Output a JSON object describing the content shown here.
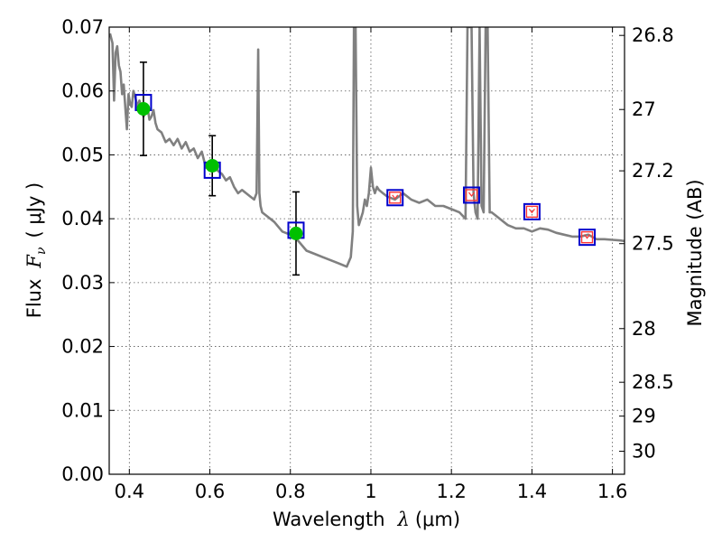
{
  "chart_data": {
    "type": "line",
    "xlabel": "Wavelength",
    "xlabel_symbol": "λ",
    "xlabel_unit": "(μm)",
    "ylabel": "Flux",
    "ylabel_symbol": "F",
    "ylabel_subscript": "ν",
    "ylabel_unit": "( μJy )",
    "y2label": "Magnitude (AB)",
    "xlim": [
      0.35,
      1.63
    ],
    "ylim": [
      0.0,
      0.07
    ],
    "grid": true,
    "x_ticks": [
      0.4,
      0.6,
      0.8,
      1.0,
      1.2,
      1.4,
      1.6
    ],
    "x_tick_labels": [
      "0.4",
      "0.6",
      "0.8",
      "1",
      "1.2",
      "1.4",
      "1.6"
    ],
    "y_ticks": [
      0.0,
      0.01,
      0.02,
      0.03,
      0.04,
      0.05,
      0.06,
      0.07
    ],
    "y_tick_labels": [
      "0.00",
      "0.01",
      "0.02",
      "0.03",
      "0.04",
      "0.05",
      "0.06",
      "0.07"
    ],
    "y2_ticks": [
      {
        "label": "26.8",
        "flux": 0.0687
      },
      {
        "label": "27",
        "flux": 0.0571
      },
      {
        "label": "27.2",
        "flux": 0.0475
      },
      {
        "label": "27.5",
        "flux": 0.0361
      },
      {
        "label": "28",
        "flux": 0.0228
      },
      {
        "label": "28.5",
        "flux": 0.0144
      },
      {
        "label": "29",
        "flux": 0.0091
      },
      {
        "label": "30",
        "flux": 0.0036
      }
    ],
    "model_spectrum": {
      "color": "#808080",
      "x": [
        0.352,
        0.358,
        0.362,
        0.366,
        0.37,
        0.374,
        0.378,
        0.382,
        0.386,
        0.39,
        0.394,
        0.398,
        0.402,
        0.406,
        0.41,
        0.415,
        0.42,
        0.425,
        0.43,
        0.435,
        0.44,
        0.445,
        0.45,
        0.455,
        0.46,
        0.465,
        0.47,
        0.48,
        0.49,
        0.5,
        0.51,
        0.52,
        0.53,
        0.54,
        0.55,
        0.56,
        0.57,
        0.58,
        0.59,
        0.6,
        0.61,
        0.62,
        0.63,
        0.64,
        0.65,
        0.66,
        0.67,
        0.68,
        0.69,
        0.7,
        0.71,
        0.716,
        0.72,
        0.723,
        0.726,
        0.73,
        0.74,
        0.76,
        0.78,
        0.8,
        0.82,
        0.84,
        0.86,
        0.88,
        0.9,
        0.92,
        0.94,
        0.95,
        0.955,
        0.958,
        0.96,
        0.962,
        0.966,
        0.97,
        0.975,
        0.98,
        0.985,
        0.99,
        0.995,
        1.0,
        1.005,
        1.01,
        1.015,
        1.02,
        1.03,
        1.04,
        1.06,
        1.08,
        1.1,
        1.12,
        1.14,
        1.16,
        1.18,
        1.2,
        1.22,
        1.235,
        1.24,
        1.245,
        1.25,
        1.255,
        1.26,
        1.265,
        1.27,
        1.275,
        1.28,
        1.285,
        1.29,
        1.295,
        1.3,
        1.31,
        1.32,
        1.34,
        1.36,
        1.38,
        1.4,
        1.42,
        1.44,
        1.46,
        1.48,
        1.5,
        1.52,
        1.54,
        1.56,
        1.58,
        1.6,
        1.62,
        1.63
      ],
      "y": [
        0.069,
        0.0675,
        0.0585,
        0.066,
        0.067,
        0.064,
        0.063,
        0.0595,
        0.061,
        0.0575,
        0.054,
        0.0595,
        0.058,
        0.0575,
        0.06,
        0.059,
        0.0575,
        0.0585,
        0.0575,
        0.056,
        0.0565,
        0.0575,
        0.0555,
        0.056,
        0.057,
        0.055,
        0.054,
        0.0535,
        0.052,
        0.0525,
        0.0515,
        0.0525,
        0.051,
        0.052,
        0.0505,
        0.051,
        0.0495,
        0.0505,
        0.048,
        0.049,
        0.0485,
        0.0475,
        0.047,
        0.046,
        0.0465,
        0.045,
        0.044,
        0.0445,
        0.044,
        0.0435,
        0.043,
        0.044,
        0.0665,
        0.044,
        0.042,
        0.041,
        0.0405,
        0.0395,
        0.038,
        0.0375,
        0.0365,
        0.035,
        0.0345,
        0.034,
        0.0335,
        0.033,
        0.0325,
        0.034,
        0.038,
        0.07,
        0.07,
        0.07,
        0.042,
        0.039,
        0.04,
        0.041,
        0.043,
        0.042,
        0.044,
        0.048,
        0.045,
        0.044,
        0.045,
        0.0445,
        0.044,
        0.0435,
        0.043,
        0.044,
        0.043,
        0.0425,
        0.043,
        0.042,
        0.042,
        0.0415,
        0.041,
        0.04,
        0.07,
        0.07,
        0.07,
        0.044,
        0.041,
        0.04,
        0.07,
        0.042,
        0.041,
        0.07,
        0.07,
        0.041,
        0.041,
        0.0405,
        0.04,
        0.039,
        0.0385,
        0.0385,
        0.038,
        0.0385,
        0.0383,
        0.0378,
        0.0375,
        0.0372,
        0.0372,
        0.0375,
        0.0368,
        0.0368,
        0.0367,
        0.0366,
        0.0365
      ]
    },
    "model_photometry": {
      "marker": "square",
      "edge_color": "#0000cc",
      "x": [
        0.435,
        0.606,
        0.814,
        1.06,
        1.25,
        1.4,
        1.537
      ],
      "y": [
        0.0582,
        0.0476,
        0.0382,
        0.0433,
        0.0437,
        0.0411,
        0.0371
      ]
    },
    "observed_detections": {
      "marker": "circle",
      "color": "#00c000",
      "x": [
        0.435,
        0.606,
        0.814
      ],
      "y": [
        0.0572,
        0.0483,
        0.0377
      ],
      "yerr": [
        0.0073,
        0.0047,
        0.0065
      ]
    },
    "observed_upper_limits": {
      "marker": "square",
      "edge_color": "#ff3333",
      "x": [
        1.06,
        1.25,
        1.4,
        1.537
      ],
      "y": [
        0.0433,
        0.0437,
        0.0411,
        0.0371
      ]
    }
  }
}
